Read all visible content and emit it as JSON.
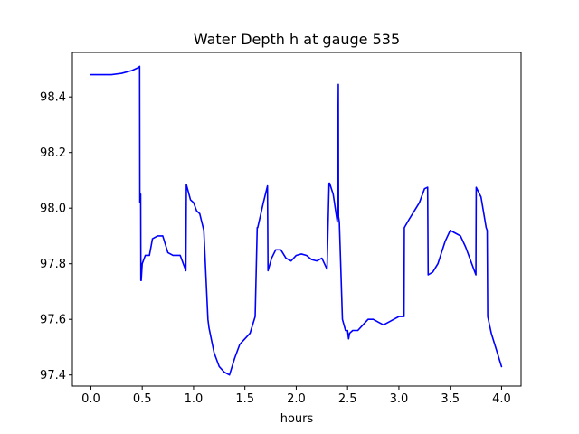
{
  "chart_data": {
    "type": "line",
    "title": "Water Depth h at gauge 535",
    "xlabel": "hours",
    "ylabel": "",
    "xlim": [
      -0.18,
      4.19
    ],
    "ylim": [
      97.36,
      98.56
    ],
    "xticks": [
      0.0,
      0.5,
      1.0,
      1.5,
      2.0,
      2.5,
      3.0,
      3.5,
      4.0
    ],
    "xtick_labels": [
      "0.0",
      "0.5",
      "1.0",
      "1.5",
      "2.0",
      "2.5",
      "3.0",
      "3.5",
      "4.0"
    ],
    "yticks": [
      97.4,
      97.6,
      97.8,
      98.0,
      98.2,
      98.4
    ],
    "ytick_labels": [
      "97.4",
      "97.6",
      "97.8",
      "98.0",
      "98.2",
      "98.4"
    ],
    "grid": false,
    "legend": "none",
    "series": [
      {
        "color": "#0000ff",
        "x": [
          0.0,
          0.1,
          0.2,
          0.3,
          0.4,
          0.46,
          0.475,
          0.477,
          0.485,
          0.487,
          0.49,
          0.5,
          0.53,
          0.57,
          0.6,
          0.65,
          0.7,
          0.75,
          0.8,
          0.87,
          0.9,
          0.925,
          0.93,
          0.97,
          1.0,
          1.03,
          1.06,
          1.1,
          1.14,
          1.15,
          1.2,
          1.25,
          1.3,
          1.35,
          1.4,
          1.45,
          1.5,
          1.55,
          1.6,
          1.62,
          1.625,
          1.68,
          1.72,
          1.725,
          1.76,
          1.8,
          1.85,
          1.9,
          1.95,
          2.0,
          2.05,
          2.1,
          2.15,
          2.2,
          2.25,
          2.3,
          2.32,
          2.325,
          2.36,
          2.4,
          2.41,
          2.412,
          2.42,
          2.45,
          2.48,
          2.5,
          2.51,
          2.52,
          2.55,
          2.6,
          2.65,
          2.7,
          2.75,
          2.8,
          2.85,
          2.9,
          2.95,
          3.0,
          3.05,
          3.053,
          3.1,
          3.15,
          3.2,
          3.25,
          3.28,
          3.285,
          3.33,
          3.38,
          3.45,
          3.5,
          3.55,
          3.6,
          3.65,
          3.7,
          3.75,
          3.753,
          3.8,
          3.85,
          3.86,
          3.865,
          3.9,
          3.95,
          4.0
        ],
        "y": [
          98.48,
          98.48,
          98.48,
          98.485,
          98.495,
          98.505,
          98.51,
          98.02,
          98.05,
          97.74,
          97.74,
          97.8,
          97.83,
          97.83,
          97.89,
          97.9,
          97.9,
          97.84,
          97.83,
          97.83,
          97.8,
          97.775,
          98.085,
          98.03,
          98.02,
          97.99,
          97.98,
          97.92,
          97.6,
          97.57,
          97.48,
          97.43,
          97.41,
          97.4,
          97.46,
          97.51,
          97.53,
          97.55,
          97.61,
          97.93,
          97.93,
          98.02,
          98.08,
          97.775,
          97.82,
          97.85,
          97.85,
          97.82,
          97.81,
          97.83,
          97.835,
          97.83,
          97.815,
          97.81,
          97.82,
          97.78,
          98.09,
          98.09,
          98.05,
          97.95,
          98.445,
          97.97,
          97.95,
          97.6,
          97.56,
          97.56,
          97.53,
          97.55,
          97.56,
          97.56,
          97.58,
          97.6,
          97.6,
          97.59,
          97.58,
          97.59,
          97.6,
          97.61,
          97.61,
          97.93,
          97.96,
          97.99,
          98.02,
          98.07,
          98.075,
          97.76,
          97.77,
          97.8,
          97.88,
          97.92,
          97.91,
          97.9,
          97.86,
          97.81,
          97.76,
          98.075,
          98.04,
          97.93,
          97.92,
          97.61,
          97.55,
          97.49,
          97.43
        ]
      }
    ]
  }
}
